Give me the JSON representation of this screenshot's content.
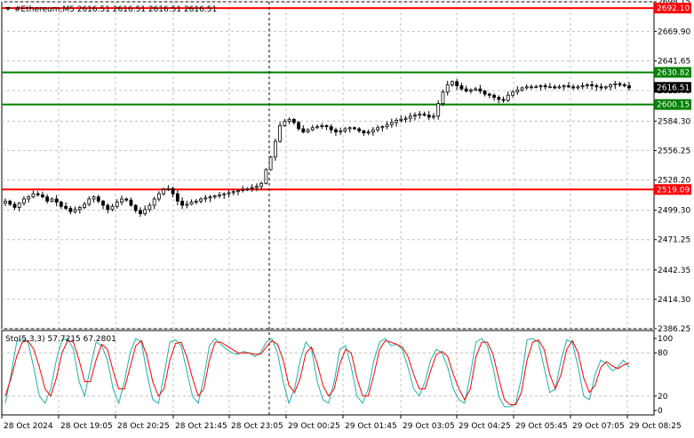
{
  "header": {
    "symbol_line": "#Ethereum,M5  2616.51 2616.51 2616.51 2616.51"
  },
  "indicator": {
    "label": "Sto(5,3,3) 57.7215 67.2801",
    "k_color": "#20B2AA",
    "d_color": "#FF0000",
    "levels": [
      20,
      80
    ],
    "axis_labels": [
      "100",
      "80",
      "20",
      "0"
    ]
  },
  "colors": {
    "background": "#FFFFFF",
    "candle": "#000000",
    "grid": "#C0C0C0",
    "resistance": "#FF0000",
    "support": "#008000"
  },
  "chart_data": {
    "type": "candlestick",
    "symbol": "#Ethereum",
    "timeframe": "M5",
    "ylim": [
      2386.25,
      2698.15
    ],
    "y_ticks": [
      "2698.15",
      "2669.90",
      "2641.65",
      "2613.40",
      "2584.30",
      "2556.25",
      "2528.20",
      "2499.30",
      "2471.25",
      "2442.35",
      "2414.30",
      "2386.25"
    ],
    "x_ticks": [
      "28 Oct 2024",
      "28 Oct 19:05",
      "28 Oct 20:25",
      "28 Oct 21:45",
      "28 Oct 23:05",
      "29 Oct 00:25",
      "29 Oct 01:45",
      "29 Oct 03:05",
      "29 Oct 04:25",
      "29 Oct 05:45",
      "29 Oct 07:05",
      "29 Oct 08:25"
    ],
    "current_price": "2616.51",
    "levels": [
      {
        "value": "2692.10",
        "color": "#FF0000"
      },
      {
        "value": "2630.82",
        "color": "#008000"
      },
      {
        "value": "2600.15",
        "color": "#008000"
      },
      {
        "value": "2519.09",
        "color": "#FF0000"
      }
    ],
    "vertical_marker": "28 Oct 23:05",
    "close_series": [
      2508,
      2505,
      2502,
      2506,
      2510,
      2512,
      2515,
      2514,
      2512,
      2508,
      2510,
      2507,
      2503,
      2501,
      2498,
      2500,
      2502,
      2505,
      2510,
      2512,
      2508,
      2504,
      2500,
      2503,
      2507,
      2510,
      2509,
      2504,
      2499,
      2496,
      2500,
      2504,
      2510,
      2515,
      2519,
      2520,
      2515,
      2508,
      2504,
      2505,
      2507,
      2508,
      2510,
      2511,
      2512,
      2513,
      2514,
      2515,
      2516,
      2517,
      2518,
      2519,
      2520,
      2521,
      2522,
      2525,
      2538,
      2550,
      2565,
      2580,
      2584,
      2586,
      2583,
      2577,
      2574,
      2576,
      2578,
      2579,
      2580,
      2579,
      2576,
      2574,
      2575,
      2577,
      2578,
      2577,
      2575,
      2573,
      2574,
      2576,
      2578,
      2579,
      2581,
      2583,
      2585,
      2586,
      2587,
      2589,
      2590,
      2591,
      2590,
      2588,
      2589,
      2601,
      2612,
      2619,
      2622,
      2618,
      2615,
      2613,
      2614,
      2615,
      2613,
      2610,
      2609,
      2607,
      2605,
      2604,
      2609,
      2612,
      2614,
      2616,
      2617,
      2617,
      2617,
      2618,
      2617,
      2617,
      2616,
      2617,
      2618,
      2617,
      2616,
      2617,
      2618,
      2619,
      2618,
      2617,
      2616,
      2617,
      2619,
      2620,
      2619,
      2618,
      2616
    ],
    "stochastic_k": [
      10,
      50,
      95,
      100,
      95,
      60,
      20,
      10,
      30,
      70,
      98,
      100,
      85,
      40,
      20,
      60,
      95,
      90,
      70,
      30,
      10,
      40,
      80,
      100,
      95,
      50,
      15,
      10,
      50,
      95,
      98,
      90,
      55,
      20,
      10,
      45,
      90,
      100,
      92,
      85,
      80,
      78,
      82,
      80,
      75,
      80,
      95,
      100,
      80,
      40,
      10,
      30,
      70,
      95,
      85,
      40,
      15,
      10,
      40,
      85,
      90,
      60,
      20,
      10,
      30,
      70,
      95,
      100,
      90,
      92,
      85,
      60,
      30,
      20,
      40,
      70,
      85,
      80,
      60,
      30,
      15,
      10,
      50,
      95,
      100,
      90,
      60,
      20,
      5,
      5,
      10,
      45,
      98,
      100,
      95,
      60,
      25,
      30,
      70,
      98,
      95,
      60,
      20,
      15,
      50,
      70,
      65,
      55,
      60,
      70,
      60
    ],
    "stochastic_d": [
      20,
      45,
      75,
      95,
      97,
      85,
      60,
      30,
      20,
      45,
      80,
      97,
      95,
      70,
      40,
      40,
      70,
      92,
      85,
      55,
      30,
      30,
      60,
      90,
      97,
      75,
      40,
      20,
      30,
      70,
      93,
      95,
      75,
      45,
      20,
      30,
      70,
      95,
      95,
      90,
      85,
      80,
      80,
      80,
      78,
      78,
      88,
      97,
      92,
      70,
      35,
      25,
      45,
      80,
      88,
      65,
      35,
      20,
      30,
      65,
      85,
      80,
      45,
      20,
      20,
      50,
      85,
      97,
      95,
      92,
      88,
      75,
      50,
      30,
      30,
      55,
      78,
      82,
      75,
      50,
      30,
      15,
      30,
      75,
      95,
      95,
      78,
      45,
      15,
      8,
      8,
      25,
      70,
      95,
      98,
      85,
      50,
      30,
      50,
      85,
      97,
      80,
      45,
      25,
      35,
      60,
      68,
      62,
      58,
      63,
      66
    ]
  }
}
